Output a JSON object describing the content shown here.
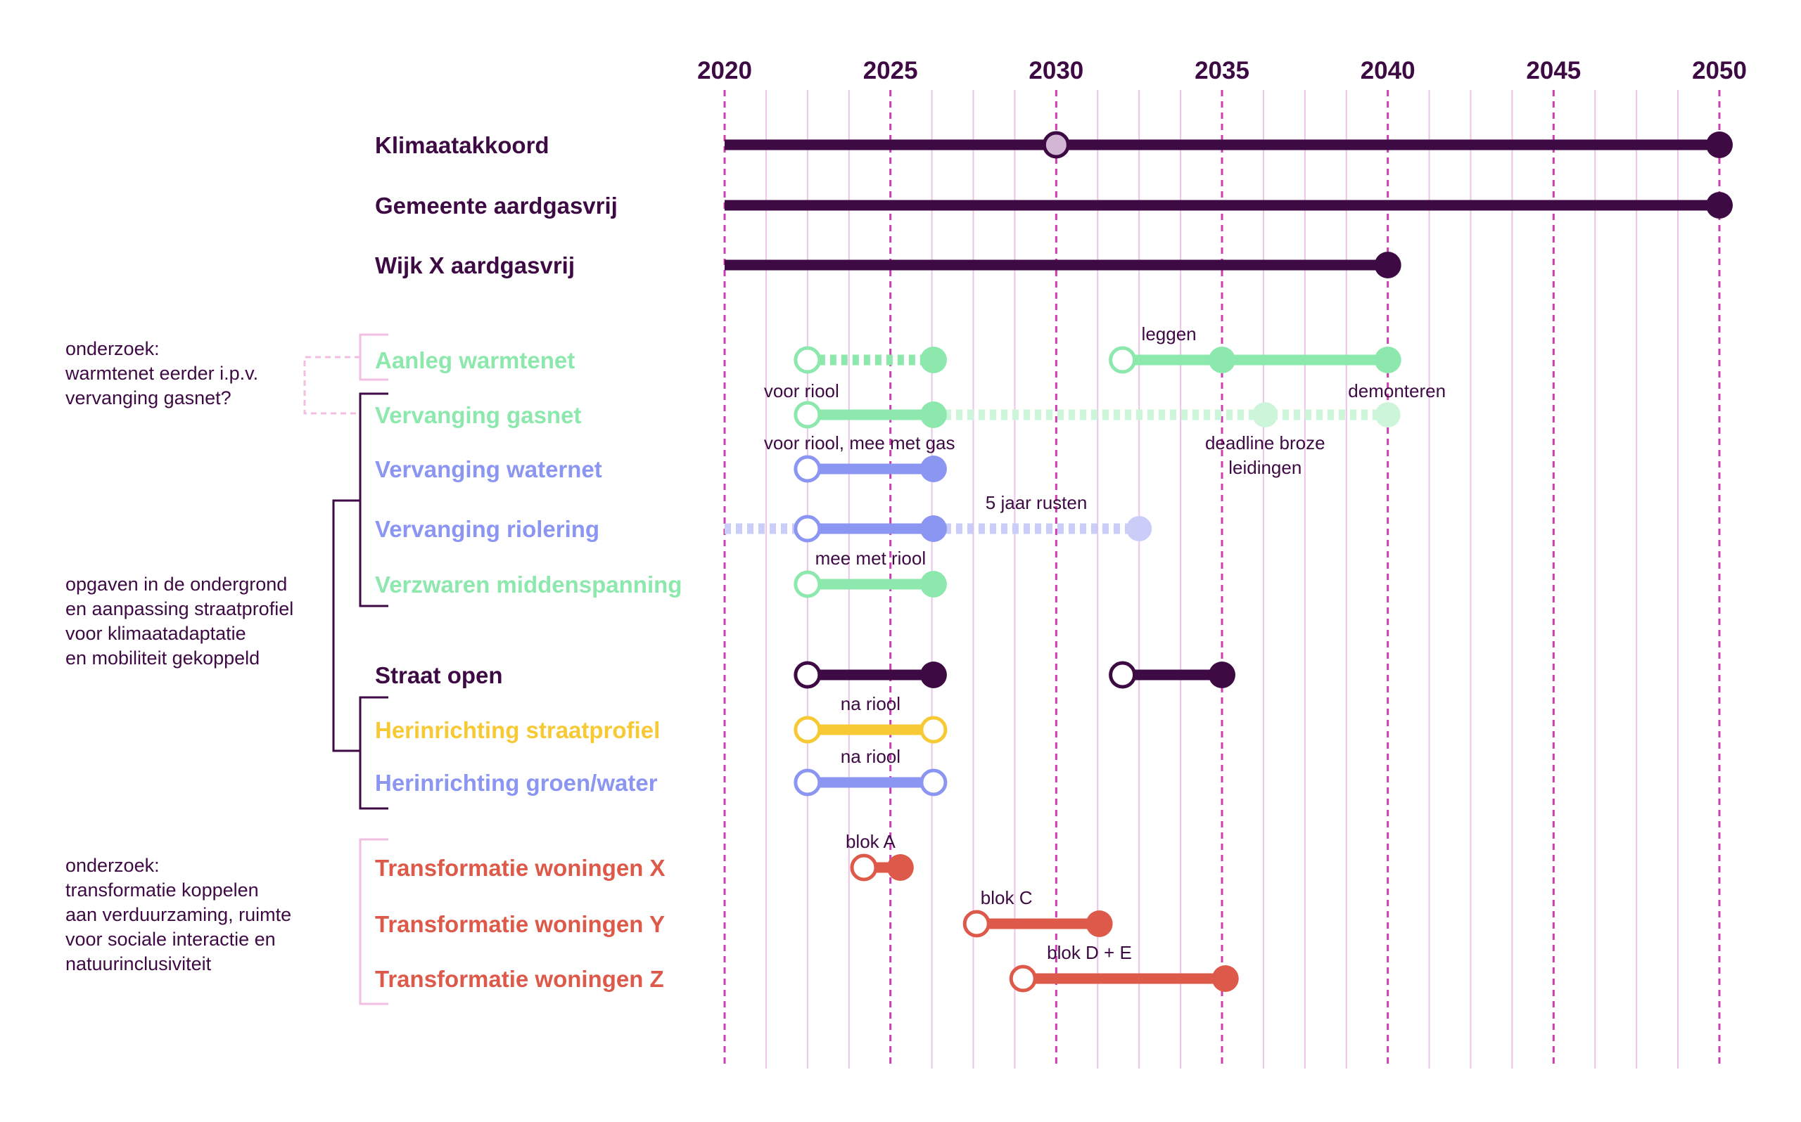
{
  "colors": {
    "dark": "#3e0a44",
    "green": "#8de8ad",
    "green_light": "#cdf5da",
    "blue": "#8b95f2",
    "blue_light": "#c9cdf8",
    "yellow": "#f7c935",
    "red": "#dd5a4b",
    "pink_dash": "#cc3db2",
    "pink_grid": "#ecc4e7",
    "pink_bracket": "#f0bfe2",
    "hollow_fill": "#ffffff",
    "midpoint_fill": "#d3b6d4"
  },
  "chart_data": {
    "type": "timeline",
    "x_ticks": [
      "2020",
      "2025",
      "2030",
      "2035",
      "2040",
      "2045",
      "2050"
    ],
    "x_range": [
      2020,
      2050
    ],
    "grid": "every 1.25 years, dashed lines every 5 years",
    "rows": [
      {
        "label": "Klimaatakkoord",
        "color": "dark",
        "segments": [
          {
            "from": 2020,
            "to": 2050,
            "style": "solid"
          }
        ],
        "markers": [
          {
            "year": 2030,
            "kind": "midpoint"
          },
          {
            "year": 2050,
            "kind": "filled"
          }
        ]
      },
      {
        "label": "Gemeente aardgasvrij",
        "color": "dark",
        "segments": [
          {
            "from": 2020,
            "to": 2050,
            "style": "solid"
          }
        ],
        "markers": [
          {
            "year": 2050,
            "kind": "filled"
          }
        ]
      },
      {
        "label": "Wijk X aardgasvrij",
        "color": "dark",
        "segments": [
          {
            "from": 2020,
            "to": 2040,
            "style": "solid"
          }
        ],
        "markers": [
          {
            "year": 2040,
            "kind": "filled"
          }
        ]
      },
      {
        "label": "Aanleg warmtenet",
        "color": "green",
        "segments": [
          {
            "from": 2022.5,
            "to": 2026.3,
            "style": "dotted"
          },
          {
            "from": 2032,
            "to": 2040,
            "style": "solid"
          }
        ],
        "markers": [
          {
            "year": 2022.5,
            "kind": "hollow"
          },
          {
            "year": 2026.3,
            "kind": "filled"
          },
          {
            "year": 2032,
            "kind": "hollow"
          },
          {
            "year": 2035,
            "kind": "filled"
          },
          {
            "year": 2040,
            "kind": "filled"
          }
        ]
      },
      {
        "label": "Vervanging gasnet",
        "color": "green",
        "segments": [
          {
            "from": 2022.5,
            "to": 2026.3,
            "style": "solid"
          },
          {
            "from": 2026.3,
            "to": 2040,
            "style": "dotted-light"
          }
        ],
        "markers": [
          {
            "year": 2022.5,
            "kind": "hollow"
          },
          {
            "year": 2026.3,
            "kind": "filled"
          },
          {
            "year": 2036.3,
            "kind": "light"
          },
          {
            "year": 2040,
            "kind": "light"
          }
        ]
      },
      {
        "label": "Vervanging waternet",
        "color": "blue",
        "segments": [
          {
            "from": 2022.5,
            "to": 2026.3,
            "style": "solid"
          }
        ],
        "markers": [
          {
            "year": 2022.5,
            "kind": "hollow"
          },
          {
            "year": 2026.3,
            "kind": "filled"
          }
        ]
      },
      {
        "label": "Vervanging riolering",
        "color": "blue",
        "segments": [
          {
            "from": 2020,
            "to": 2022.5,
            "style": "dotted-light"
          },
          {
            "from": 2022.5,
            "to": 2026.3,
            "style": "solid"
          },
          {
            "from": 2026.3,
            "to": 2032.5,
            "style": "dotted-light"
          }
        ],
        "markers": [
          {
            "year": 2022.5,
            "kind": "hollow"
          },
          {
            "year": 2026.3,
            "kind": "filled"
          },
          {
            "year": 2032.5,
            "kind": "light"
          }
        ]
      },
      {
        "label": "Verzwaren middenspanning",
        "color": "green",
        "segments": [
          {
            "from": 2022.5,
            "to": 2026.3,
            "style": "solid"
          }
        ],
        "markers": [
          {
            "year": 2022.5,
            "kind": "hollow"
          },
          {
            "year": 2026.3,
            "kind": "filled"
          }
        ]
      },
      {
        "label": "Straat open",
        "color": "dark",
        "segments": [
          {
            "from": 2022.5,
            "to": 2026.3,
            "style": "solid"
          },
          {
            "from": 2032,
            "to": 2035,
            "style": "solid"
          }
        ],
        "markers": [
          {
            "year": 2022.5,
            "kind": "hollow"
          },
          {
            "year": 2026.3,
            "kind": "filled"
          },
          {
            "year": 2032,
            "kind": "hollow"
          },
          {
            "year": 2035,
            "kind": "filled"
          }
        ]
      },
      {
        "label": "Herinrichting straatprofiel",
        "color": "yellow",
        "segments": [
          {
            "from": 2022.5,
            "to": 2026.3,
            "style": "solid"
          }
        ],
        "markers": [
          {
            "year": 2022.5,
            "kind": "hollow"
          },
          {
            "year": 2026.3,
            "kind": "hollow"
          }
        ]
      },
      {
        "label": "Herinrichting groen/water",
        "color": "blue",
        "segments": [
          {
            "from": 2022.5,
            "to": 2026.3,
            "style": "solid"
          }
        ],
        "markers": [
          {
            "year": 2022.5,
            "kind": "hollow"
          },
          {
            "year": 2026.3,
            "kind": "hollow"
          }
        ]
      },
      {
        "label": "Transformatie woningen X",
        "color": "red",
        "segments": [
          {
            "from": 2024.2,
            "to": 2025.3,
            "style": "solid"
          }
        ],
        "markers": [
          {
            "year": 2024.2,
            "kind": "hollow"
          },
          {
            "year": 2025.3,
            "kind": "filled"
          }
        ]
      },
      {
        "label": "Transformatie woningen Y",
        "color": "red",
        "segments": [
          {
            "from": 2027.6,
            "to": 2031.3,
            "style": "solid"
          }
        ],
        "markers": [
          {
            "year": 2027.6,
            "kind": "hollow"
          },
          {
            "year": 2031.3,
            "kind": "filled"
          }
        ]
      },
      {
        "label": "Transformatie woningen Z",
        "color": "red",
        "segments": [
          {
            "from": 2029,
            "to": 2035.1,
            "style": "solid"
          }
        ],
        "markers": [
          {
            "year": 2029,
            "kind": "hollow"
          },
          {
            "year": 2035.1,
            "kind": "filled"
          }
        ]
      }
    ],
    "annotations": [
      {
        "text": "leggen",
        "year": 2033.4,
        "row": "Aanleg warmtenet",
        "pos": "above"
      },
      {
        "text": "voor riool",
        "year": 2022.5,
        "row": "Vervanging gasnet",
        "pos": "above"
      },
      {
        "text": "demonteren",
        "year": 2040,
        "row": "Vervanging gasnet",
        "pos": "above"
      },
      {
        "text": "voor riool, mee met gas",
        "year": 2024.7,
        "row": "Vervanging waternet",
        "pos": "above"
      },
      {
        "text": "deadline broze",
        "year": 2036.3,
        "row": "Vervanging gasnet",
        "pos": "below1"
      },
      {
        "text": "leidingen",
        "year": 2036.3,
        "row": "Vervanging gasnet",
        "pos": "below2"
      },
      {
        "text": "5 jaar rusten",
        "year": 2029.4,
        "row": "Vervanging riolering",
        "pos": "above"
      },
      {
        "text": "mee met riool",
        "year": 2024.4,
        "row": "Verzwaren middenspanning",
        "pos": "above"
      },
      {
        "text": "na riool",
        "year": 2024.4,
        "row": "Herinrichting straatprofiel",
        "pos": "above"
      },
      {
        "text": "na riool",
        "year": 2024.4,
        "row": "Herinrichting groen/water",
        "pos": "above"
      },
      {
        "text": "blok A",
        "year": 2024.4,
        "row": "Transformatie woningen X",
        "pos": "above"
      },
      {
        "text": "blok C",
        "year": 2028.5,
        "row": "Transformatie woningen Y",
        "pos": "above"
      },
      {
        "text": "blok D + E",
        "year": 2031,
        "row": "Transformatie woningen Z",
        "pos": "above"
      }
    ]
  },
  "notes": [
    {
      "lines": [
        "onderzoek:",
        "warmtenet eerder i.p.v.",
        "vervanging gasnet?"
      ]
    },
    {
      "lines": [
        "opgaven in de ondergrond",
        "en aanpassing straatprofiel",
        "voor klimaatadaptatie",
        "en mobiliteit gekoppeld"
      ]
    },
    {
      "lines": [
        "onderzoek:",
        "transformatie koppelen",
        "aan verduurzaming, ruimte",
        "voor sociale interactie en",
        "natuurinclusiviteit"
      ]
    }
  ]
}
